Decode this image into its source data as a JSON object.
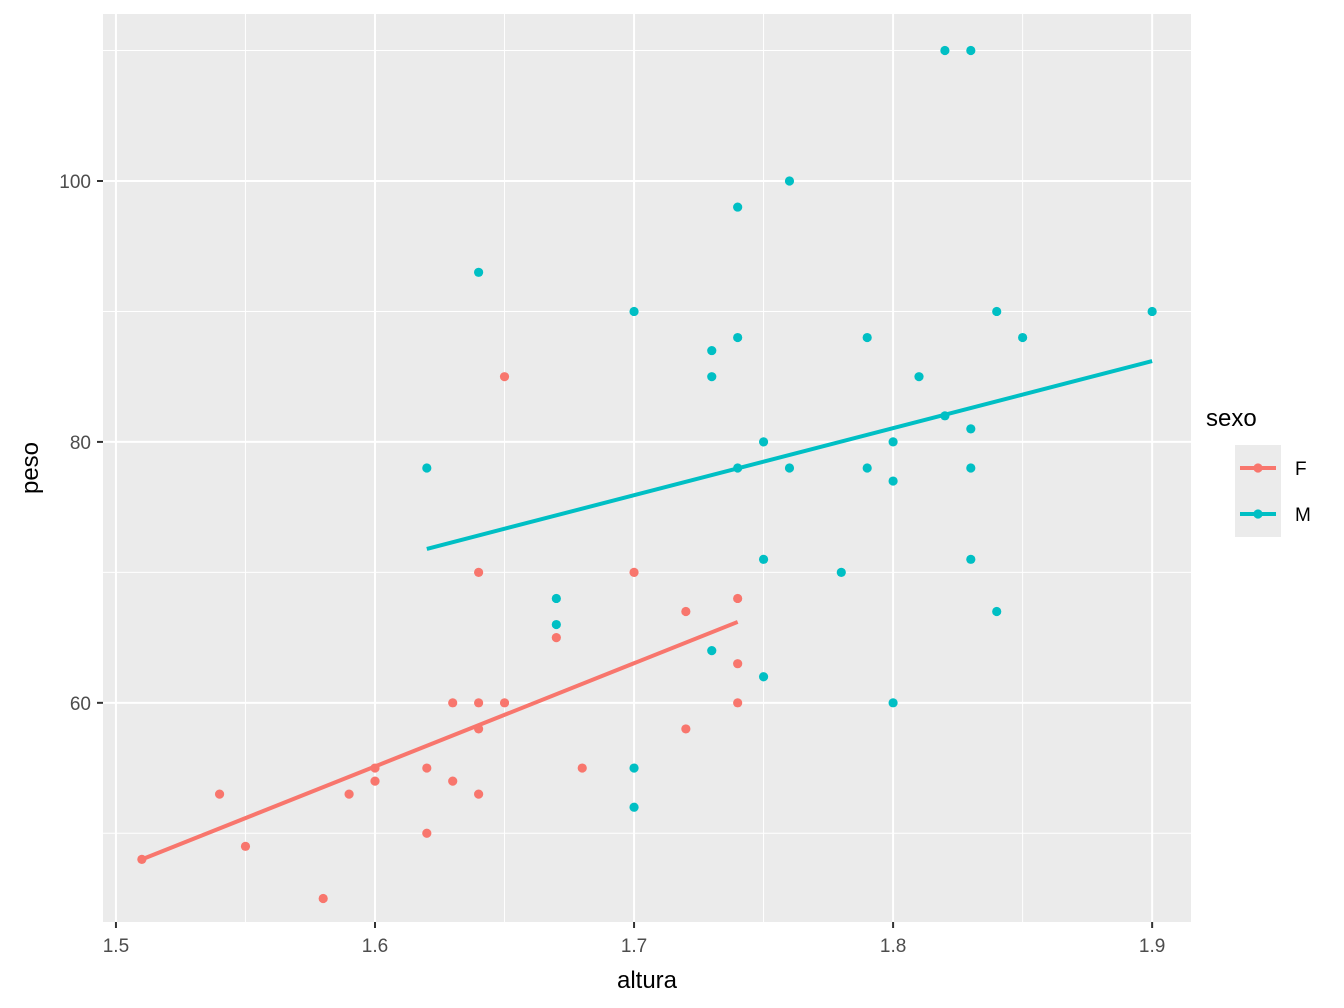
{
  "chart_data": {
    "type": "scatter",
    "xlabel": "altura",
    "ylabel": "peso",
    "xlim": [
      1.495,
      1.915
    ],
    "ylim": [
      43.2,
      112.8
    ],
    "x_ticks": [
      1.5,
      1.6,
      1.7,
      1.8,
      1.9
    ],
    "x_tick_labels": [
      "1.5",
      "1.6",
      "1.7",
      "1.8",
      "1.9"
    ],
    "y_ticks": [
      60,
      80,
      100
    ],
    "y_tick_labels": [
      "60",
      "80",
      "100"
    ],
    "y_minor_ticks": [
      50,
      70,
      90,
      110
    ],
    "x_minor_ticks": [
      1.55,
      1.65,
      1.75,
      1.85
    ],
    "grid": true,
    "legend": {
      "title": "sexo",
      "placement": "right"
    },
    "series": [
      {
        "name": "F",
        "color": "#F8766D",
        "points": [
          [
            1.51,
            48
          ],
          [
            1.54,
            53
          ],
          [
            1.55,
            49
          ],
          [
            1.58,
            45
          ],
          [
            1.59,
            53
          ],
          [
            1.6,
            55
          ],
          [
            1.6,
            54
          ],
          [
            1.62,
            55
          ],
          [
            1.62,
            50
          ],
          [
            1.63,
            60
          ],
          [
            1.63,
            54
          ],
          [
            1.64,
            70
          ],
          [
            1.64,
            60
          ],
          [
            1.64,
            58
          ],
          [
            1.64,
            53
          ],
          [
            1.65,
            85
          ],
          [
            1.65,
            60
          ],
          [
            1.67,
            65
          ],
          [
            1.68,
            55
          ],
          [
            1.7,
            70
          ],
          [
            1.72,
            67
          ],
          [
            1.72,
            58
          ],
          [
            1.74,
            68
          ],
          [
            1.74,
            63
          ],
          [
            1.74,
            60
          ]
        ],
        "fit_line": [
          [
            1.51,
            48.0
          ],
          [
            1.74,
            66.2
          ]
        ]
      },
      {
        "name": "M",
        "color": "#00BFC4",
        "points": [
          [
            1.62,
            78
          ],
          [
            1.64,
            93
          ],
          [
            1.67,
            68
          ],
          [
            1.67,
            66
          ],
          [
            1.7,
            90
          ],
          [
            1.7,
            55
          ],
          [
            1.7,
            52
          ],
          [
            1.73,
            87
          ],
          [
            1.73,
            85
          ],
          [
            1.73,
            64
          ],
          [
            1.74,
            98
          ],
          [
            1.74,
            88
          ],
          [
            1.74,
            78
          ],
          [
            1.75,
            80
          ],
          [
            1.75,
            71
          ],
          [
            1.75,
            62
          ],
          [
            1.76,
            100
          ],
          [
            1.76,
            78
          ],
          [
            1.78,
            70
          ],
          [
            1.79,
            88
          ],
          [
            1.79,
            78
          ],
          [
            1.8,
            80
          ],
          [
            1.8,
            77
          ],
          [
            1.8,
            60
          ],
          [
            1.81,
            85
          ],
          [
            1.82,
            110
          ],
          [
            1.82,
            82
          ],
          [
            1.83,
            110
          ],
          [
            1.83,
            81
          ],
          [
            1.83,
            78
          ],
          [
            1.83,
            71
          ],
          [
            1.84,
            90
          ],
          [
            1.84,
            67
          ],
          [
            1.85,
            88
          ],
          [
            1.9,
            90
          ]
        ],
        "fit_line": [
          [
            1.62,
            71.8
          ],
          [
            1.9,
            86.2
          ]
        ]
      }
    ]
  }
}
